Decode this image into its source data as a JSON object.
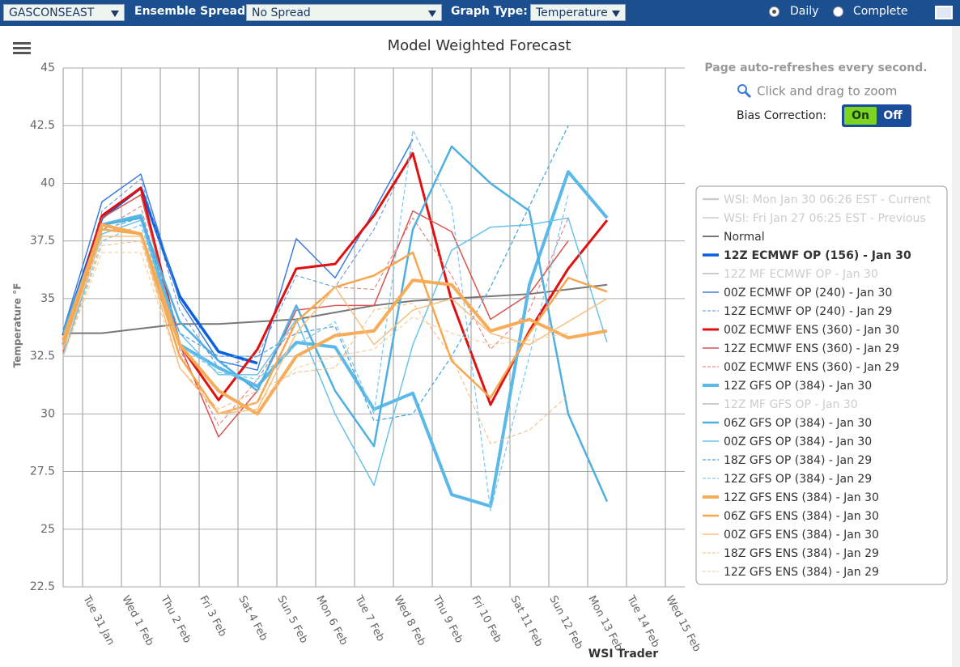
{
  "toolbar": {
    "region": "GASCONSEAST",
    "spread_label": "Ensemble Spread:",
    "spread": "No Spread",
    "graph_label": "Graph Type:",
    "graph": "Temperature",
    "mode_daily": "Daily",
    "mode_complete": "Complete"
  },
  "panel": {
    "refresh": "Page auto-refreshes every second.",
    "zoom": "Click and drag to zoom",
    "bias_label": "Bias Correction:",
    "bias_on": "On",
    "bias_off": "Off"
  },
  "footer": "WSI Trader",
  "chart_data": {
    "type": "line",
    "title": "Model Weighted Forecast",
    "y_label": "Temperature °F",
    "x": [
      0.5,
      1.5,
      2.5,
      3.5,
      4.5,
      5.5,
      6.5,
      7.5,
      8.5,
      9.5,
      10.5,
      11.5,
      12.5,
      13.5,
      14.5
    ],
    "xlim": [
      0.5,
      16.5
    ],
    "xticks": [
      {
        "value": 1,
        "label": "Tue 31 Jan"
      },
      {
        "value": 2,
        "label": "Wed 1 Feb"
      },
      {
        "value": 3,
        "label": "Thu 2 Feb"
      },
      {
        "value": 4,
        "label": "Fri 3 Feb"
      },
      {
        "value": 5,
        "label": "Sat 4 Feb"
      },
      {
        "value": 6,
        "label": "Sun 5 Feb"
      },
      {
        "value": 7,
        "label": "Mon 6 Feb"
      },
      {
        "value": 8,
        "label": "Tue 7 Feb"
      },
      {
        "value": 9,
        "label": "Wed 8 Feb"
      },
      {
        "value": 10,
        "label": "Thu 9 Feb"
      },
      {
        "value": 11,
        "label": "Fri 10 Feb"
      },
      {
        "value": 12,
        "label": "Sat 11 Feb"
      },
      {
        "value": 13,
        "label": "Sun 12 Feb"
      },
      {
        "value": 14,
        "label": "Mon 13 Feb"
      },
      {
        "value": 15,
        "label": "Tue 14 Feb"
      },
      {
        "value": 16,
        "label": "Wed 15 Feb"
      }
    ],
    "ylim": [
      22.5,
      45
    ],
    "yticks": [
      22.5,
      25,
      27.5,
      30,
      32.5,
      35,
      37.5,
      40,
      42.5,
      45
    ],
    "grid": true,
    "series": [
      {
        "name": "WSI: Mon Jan 30 06:26 EST - Current",
        "color": "#cccccc",
        "visible": false,
        "width": 2.5
      },
      {
        "name": "WSI: Fri Jan 27 06:25 EST - Previous",
        "color": "#cccccc",
        "visible": false,
        "width": 1.5
      },
      {
        "name": "Normal",
        "color": "#777777",
        "width": 2,
        "values": [
          33.5,
          33.5,
          33.7,
          33.9,
          33.9,
          34.0,
          34.1,
          34.4,
          34.7,
          34.9,
          35.0,
          35.1,
          35.2,
          35.4,
          35.6
        ]
      },
      {
        "name": "12Z ECMWF OP (156) - Jan 30",
        "color": "#0a5fe0",
        "width": 3.5,
        "bold": true,
        "values": [
          33.4,
          38.5,
          39.8,
          35.1,
          32.7,
          32.2,
          null,
          null,
          null,
          null,
          null,
          null,
          null,
          null,
          null
        ]
      },
      {
        "name": "12Z MF ECMWF OP - Jan 30",
        "color": "#cccccc",
        "visible": false,
        "width": 2
      },
      {
        "name": "00Z ECMWF OP (240) - Jan 30",
        "color": "#3b7ddd",
        "width": 1.5,
        "values": [
          33.6,
          39.2,
          40.4,
          34.9,
          32.3,
          31.9,
          37.6,
          35.9,
          38.8,
          41.9,
          null,
          null,
          null,
          null,
          null
        ]
      },
      {
        "name": "12Z ECMWF OP (240) - Jan 29",
        "color": "#5a8fe0",
        "width": 1,
        "dash": true,
        "values": [
          33.0,
          38.8,
          40.2,
          34.5,
          32.0,
          32.5,
          36.0,
          35.5,
          38.0,
          41.5,
          null,
          null,
          null,
          null,
          null
        ]
      },
      {
        "name": "00Z ECMWF ENS (360) - Jan 30",
        "color": "#e01010",
        "width": 3,
        "values": [
          33.0,
          38.6,
          39.8,
          33.0,
          30.6,
          32.8,
          36.3,
          36.5,
          38.6,
          41.3,
          34.9,
          30.4,
          33.6,
          36.3,
          38.4
        ]
      },
      {
        "name": "12Z ECMWF ENS (360) - Jan 29",
        "color": "#d9534f",
        "width": 1.5,
        "values": [
          32.7,
          38.5,
          39.5,
          33.0,
          29.0,
          31.0,
          34.5,
          34.7,
          34.7,
          38.8,
          37.9,
          34.1,
          35.2,
          37.5,
          null
        ]
      },
      {
        "name": "00Z ECMWF ENS (360) - Jan 29",
        "color": "#e57373",
        "width": 1,
        "dash": true,
        "values": [
          32.5,
          38.0,
          39.0,
          32.8,
          29.5,
          31.5,
          34.0,
          35.5,
          35.4,
          38.5,
          36.0,
          32.8,
          34.5,
          38.5,
          null
        ]
      },
      {
        "name": "12Z GFS OP (384) - Jan 30",
        "color": "#5ab9e8",
        "width": 4,
        "values": [
          33.0,
          38.2,
          38.6,
          33.0,
          32.0,
          31.2,
          33.1,
          32.9,
          30.2,
          30.9,
          26.5,
          26.0,
          35.6,
          40.5,
          38.5
        ]
      },
      {
        "name": "12Z MF GFS OP - Jan 30",
        "color": "#cccccc",
        "visible": false,
        "width": 2
      },
      {
        "name": "06Z GFS OP (384) - Jan 30",
        "color": "#4fb0e0",
        "width": 2.5,
        "values": [
          33.5,
          38.2,
          38.5,
          34.0,
          32.3,
          31.0,
          34.7,
          31.0,
          28.6,
          38.0,
          41.6,
          40.0,
          38.8,
          30.0,
          26.2
        ]
      },
      {
        "name": "00Z GFS OP (384) - Jan 30",
        "color": "#6ac2ec",
        "width": 1.5,
        "values": [
          32.5,
          37.8,
          38.4,
          33.5,
          31.7,
          31.7,
          34.1,
          30.0,
          26.9,
          33.0,
          37.1,
          38.1,
          38.2,
          38.5,
          33.1
        ]
      },
      {
        "name": "18Z GFS OP (384) - Jan 29",
        "color": "#4aa8e0",
        "width": 1.3,
        "dash": true,
        "values": [
          33.0,
          38.0,
          38.5,
          33.5,
          32.5,
          32.5,
          33.5,
          33.8,
          29.7,
          30.0,
          32.5,
          35.5,
          39.0,
          42.5,
          null
        ]
      },
      {
        "name": "12Z GFS OP (384) - Jan 29",
        "color": "#7fcaee",
        "width": 1.3,
        "dash": true,
        "values": [
          32.5,
          37.5,
          38.2,
          33.0,
          31.8,
          31.5,
          33.0,
          34.0,
          30.0,
          42.3,
          39.0,
          25.8,
          32.5,
          39.5,
          null
        ]
      },
      {
        "name": "12Z GFS ENS (384) - Jan 30",
        "color": "#f7ac5a",
        "width": 4,
        "values": [
          33.2,
          38.2,
          37.8,
          33.0,
          31.0,
          30.0,
          32.5,
          33.4,
          33.6,
          35.8,
          35.6,
          33.6,
          34.1,
          33.3,
          33.6
        ]
      },
      {
        "name": "06Z GFS ENS (384) - Jan 30",
        "color": "#f5a74f",
        "width": 2.5,
        "values": [
          33.0,
          38.0,
          37.8,
          32.5,
          30.0,
          30.5,
          34.0,
          35.5,
          36.0,
          37.0,
          32.3,
          30.7,
          33.5,
          35.9,
          35.3
        ]
      },
      {
        "name": "00Z GFS ENS (384) - Jan 30",
        "color": "#f8c07e",
        "width": 1.5,
        "values": [
          32.8,
          37.7,
          37.7,
          32.0,
          30.0,
          30.2,
          33.5,
          35.5,
          33.0,
          34.5,
          35.0,
          33.5,
          33.0,
          34.0,
          35.0
        ]
      },
      {
        "name": "18Z GFS ENS (384) - Jan 29",
        "color": "#f8b878",
        "width": 1,
        "dash": true,
        "values": [
          32.5,
          37.3,
          37.5,
          32.0,
          30.2,
          31.0,
          31.8,
          32.0,
          34.5,
          34.8,
          32.5,
          28.7,
          29.3,
          30.8,
          null
        ]
      },
      {
        "name": "12Z GFS ENS (384) - Jan 29",
        "color": "#f9c890",
        "width": 1,
        "dash": true,
        "values": [
          32.5,
          37.0,
          37.0,
          32.0,
          30.0,
          30.5,
          32.0,
          32.5,
          32.8,
          34.2,
          33.5,
          33.0,
          33.2,
          33.5,
          null
        ]
      }
    ]
  }
}
